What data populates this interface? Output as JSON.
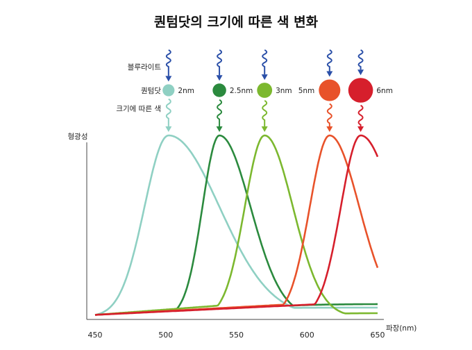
{
  "title": "퀀텀닷의 크기에 따른 색 변화",
  "row_labels": {
    "blue_light": "블루라이트",
    "quantum_dot": "퀀텀닷",
    "color_by_size": "크기에 따른 색"
  },
  "colors": {
    "incoming_blue": "#2a4fa8",
    "axis": "#444444"
  },
  "chart_data": {
    "type": "line",
    "title": "퀀텀닷의 크기에 따른 색 변화",
    "xlabel": "파장(nm)",
    "ylabel": "형광성",
    "xlim": [
      450,
      650
    ],
    "x_ticks": [
      "450",
      "500",
      "550",
      "600",
      "650"
    ],
    "grid": false,
    "series": [
      {
        "size_label": "2nm",
        "color": "#8fd0c3",
        "dot_size": 2,
        "peak_nm": 502
      },
      {
        "size_label": "2.5nm",
        "color": "#2b8a3e",
        "dot_size": 2.5,
        "peak_nm": 538
      },
      {
        "size_label": "3nm",
        "color": "#7cb82f",
        "dot_size": 3,
        "peak_nm": 570
      },
      {
        "size_label": "5nm",
        "color": "#e8522a",
        "dot_size": 5,
        "peak_nm": 616
      },
      {
        "size_label": "6nm",
        "color": "#d61f2c",
        "dot_size": 6,
        "peak_nm": 638
      }
    ]
  }
}
